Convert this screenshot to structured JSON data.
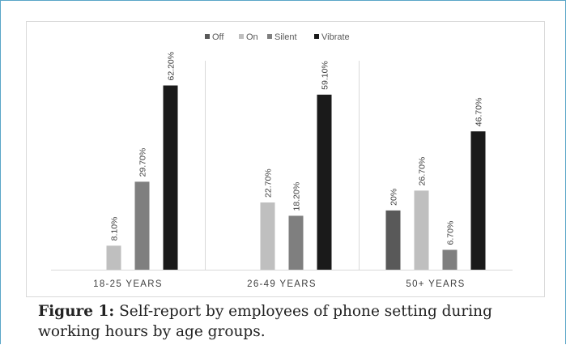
{
  "chart_data": {
    "type": "bar",
    "categories": [
      "18-25 YEARS",
      "26-49 YEARS",
      "50+ YEARS"
    ],
    "series": [
      {
        "name": "Off",
        "values": [
          null,
          null,
          20
        ],
        "labels": [
          "",
          "",
          "20%"
        ],
        "color": "#595959"
      },
      {
        "name": "On",
        "values": [
          8.1,
          22.7,
          26.7
        ],
        "labels": [
          "8.10%",
          "22.70%",
          "26.70%"
        ],
        "color": "#bfbfbf"
      },
      {
        "name": "Silent",
        "values": [
          29.7,
          18.2,
          6.7
        ],
        "labels": [
          "29.70%",
          "18.20%",
          "6.70%"
        ],
        "color": "#7f7f7f"
      },
      {
        "name": "Vibrate",
        "values": [
          62.2,
          59.1,
          46.7
        ],
        "labels": [
          "62.20%",
          "59.10%",
          "46.70%"
        ],
        "color": "#1a1a1a"
      }
    ],
    "ylim": [
      0,
      70
    ],
    "grid": false,
    "legend_position": "top-center"
  },
  "caption": {
    "label": "Figure 1:",
    "text": " Self-report by employees of phone setting during working hours by age groups."
  }
}
